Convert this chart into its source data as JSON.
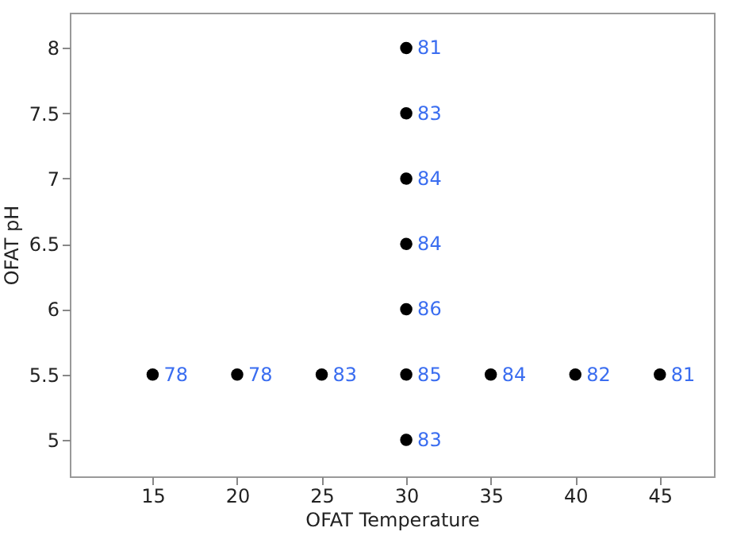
{
  "chart_data": {
    "type": "scatter",
    "xlabel": "OFAT Temperature",
    "ylabel": "OFAT pH",
    "marker": "circle",
    "xlim": [
      10.1,
      48.2
    ],
    "ylim": [
      4.72,
      8.27
    ],
    "xticks": [
      15,
      20,
      25,
      30,
      35,
      40,
      45
    ],
    "yticks": [
      5,
      5.5,
      6,
      6.5,
      7,
      7.5,
      8
    ],
    "series": [
      {
        "color": "#000000",
        "x": [
          30,
          30,
          30,
          30,
          30,
          30,
          30,
          15,
          20,
          25,
          35,
          40,
          45
        ],
        "values": [
          8,
          7.5,
          7,
          6.5,
          6,
          5.5,
          5,
          5.5,
          5.5,
          5.5,
          5.5,
          5.5,
          5.5
        ]
      }
    ],
    "annotations": [
      {
        "text": "81",
        "x": 30,
        "y": 8
      },
      {
        "text": "83",
        "x": 30,
        "y": 7.5
      },
      {
        "text": "84",
        "x": 30,
        "y": 7
      },
      {
        "text": "84",
        "x": 30,
        "y": 6.5
      },
      {
        "text": "86",
        "x": 30,
        "y": 6
      },
      {
        "text": "85",
        "x": 30,
        "y": 5.5
      },
      {
        "text": "83",
        "x": 30,
        "y": 5
      },
      {
        "text": "78",
        "x": 15,
        "y": 5.5
      },
      {
        "text": "78",
        "x": 20,
        "y": 5.5
      },
      {
        "text": "83",
        "x": 25,
        "y": 5.5
      },
      {
        "text": "84",
        "x": 35,
        "y": 5.5
      },
      {
        "text": "82",
        "x": 40,
        "y": 5.5
      },
      {
        "text": "81",
        "x": 45,
        "y": 5.5
      }
    ]
  }
}
